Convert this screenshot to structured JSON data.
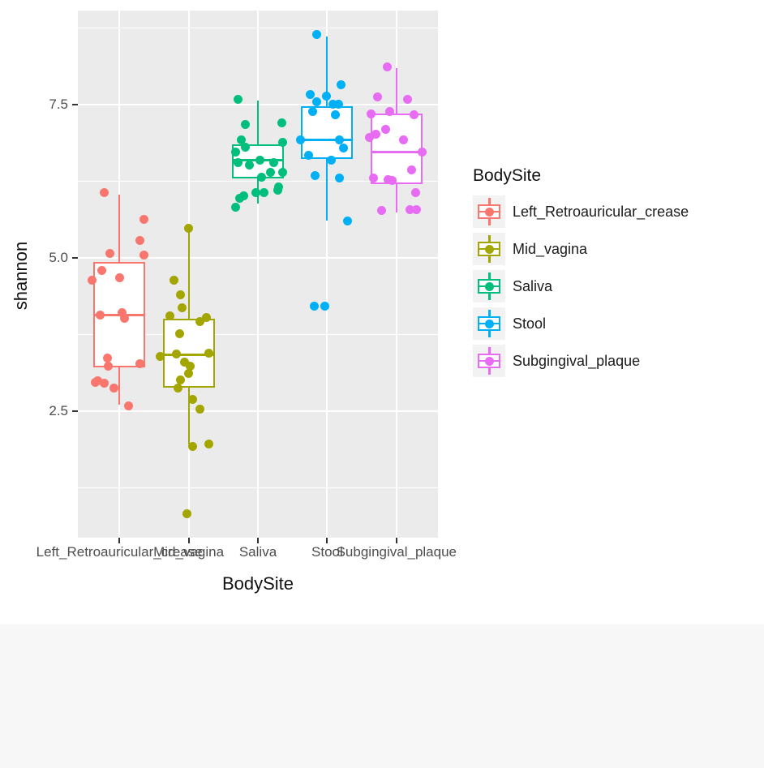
{
  "figure": {
    "y_axis": {
      "title": "shannon",
      "tick_values": [
        2.5,
        5.0,
        7.5
      ],
      "tick_labels": [
        "2.5",
        "5.0",
        "7.5"
      ]
    },
    "x_axis": {
      "title": "BodySite",
      "labels": [
        "Left_Retroauricular_crease",
        "Mid_vagina",
        "Saliva",
        "Stool",
        "Subgingival_plaque"
      ]
    },
    "legend": {
      "title": "BodySite",
      "position": "right",
      "items": [
        {
          "label": "Left_Retroauricular_crease",
          "color": "#F8766D"
        },
        {
          "label": "Mid_vagina",
          "color": "#A3A500"
        },
        {
          "label": "Saliva",
          "color": "#00BF7D"
        },
        {
          "label": "Stool",
          "color": "#00B0F6"
        },
        {
          "label": "Subgingival_plaque",
          "color": "#E76BF3"
        }
      ]
    },
    "colors": {
      "panel_background": "#EBEBEB",
      "gridline": "#FFFFFF",
      "axis_text": "#4D4D4D",
      "axis_title": "#111111",
      "legend_key_background": "#F2F2F2",
      "tick_mark": "#333333",
      "bottom_band": "#F7F7F7"
    }
  },
  "chart_data": {
    "type": "boxplot_jitter",
    "title": "",
    "xlabel": "BodySite",
    "ylabel": "shannon",
    "ylim": [
      0.4,
      9.0
    ],
    "grid": "on",
    "legend_position": "right",
    "y_major_gridlines": [
      2.5,
      5.0,
      7.5
    ],
    "y_minor_gridlines": [
      1.25,
      3.75,
      6.25,
      8.75
    ],
    "categories": [
      "Left_Retroauricular_crease",
      "Mid_vagina",
      "Saliva",
      "Stool",
      "Subgingival_plaque"
    ],
    "series": [
      {
        "name": "Left_Retroauricular_crease",
        "color": "#F8766D",
        "box": {
          "whisker_low": 2.6,
          "q1": 3.21,
          "median": 4.07,
          "q3": 4.93,
          "whisker_high": 6.03
        },
        "points": [
          [
            6.06,
            -19
          ],
          [
            5.63,
            30
          ],
          [
            5.28,
            25
          ],
          [
            5.07,
            -12
          ],
          [
            5.04,
            30
          ],
          [
            4.8,
            -22
          ],
          [
            4.67,
            0
          ],
          [
            4.64,
            -34
          ],
          [
            4.11,
            3
          ],
          [
            4.07,
            -24
          ],
          [
            4.02,
            6
          ],
          [
            3.36,
            -15
          ],
          [
            3.28,
            25
          ],
          [
            3.23,
            -14
          ],
          [
            2.99,
            -27
          ],
          [
            2.97,
            -30
          ],
          [
            2.95,
            -19
          ],
          [
            2.88,
            -7
          ],
          [
            2.59,
            11
          ]
        ]
      },
      {
        "name": "Mid_vagina",
        "color": "#A3A500",
        "box": {
          "whisker_low": 1.96,
          "q1": 2.88,
          "median": 3.42,
          "q3": 4.01,
          "whisker_high": 5.48
        },
        "points": [
          [
            5.48,
            0
          ],
          [
            4.64,
            -18
          ],
          [
            4.4,
            -10
          ],
          [
            4.18,
            -8
          ],
          [
            4.05,
            -23
          ],
          [
            4.03,
            22
          ],
          [
            3.96,
            14
          ],
          [
            3.76,
            -11
          ],
          [
            3.45,
            25
          ],
          [
            3.43,
            -15
          ],
          [
            3.39,
            -35
          ],
          [
            3.3,
            -5
          ],
          [
            3.23,
            2
          ],
          [
            3.12,
            0
          ],
          [
            3.01,
            -10
          ],
          [
            2.88,
            -13
          ],
          [
            2.69,
            5
          ],
          [
            2.53,
            14
          ],
          [
            1.96,
            25
          ],
          [
            1.93,
            5
          ],
          [
            0.83,
            -2
          ]
        ]
      },
      {
        "name": "Saliva",
        "color": "#00BF7D",
        "box": {
          "whisker_low": 5.89,
          "q1": 6.3,
          "median": 6.59,
          "q3": 6.85,
          "whisker_high": 7.57
        },
        "points": [
          [
            7.59,
            -25
          ],
          [
            7.2,
            29
          ],
          [
            7.18,
            -16
          ],
          [
            6.92,
            -21
          ],
          [
            6.89,
            30
          ],
          [
            6.8,
            -16
          ],
          [
            6.73,
            -28
          ],
          [
            6.6,
            2
          ],
          [
            6.56,
            -25
          ],
          [
            6.56,
            19
          ],
          [
            6.52,
            -11
          ],
          [
            6.39,
            15
          ],
          [
            6.39,
            30
          ],
          [
            6.32,
            4
          ],
          [
            6.16,
            25
          ],
          [
            6.1,
            24
          ],
          [
            6.07,
            7
          ],
          [
            6.06,
            -3
          ],
          [
            6.01,
            -18
          ],
          [
            5.97,
            -23
          ],
          [
            5.83,
            -28
          ]
        ]
      },
      {
        "name": "Stool",
        "color": "#00B0F6",
        "box": {
          "whisker_low": 5.61,
          "q1": 6.61,
          "median": 6.93,
          "q3": 7.47,
          "whisker_high": 8.61
        },
        "points": [
          [
            8.64,
            -13
          ],
          [
            7.82,
            17
          ],
          [
            7.66,
            -21
          ],
          [
            7.64,
            -1
          ],
          [
            7.55,
            -13
          ],
          [
            7.51,
            7
          ],
          [
            7.51,
            14
          ],
          [
            7.39,
            -18
          ],
          [
            7.33,
            10
          ],
          [
            6.93,
            -33
          ],
          [
            6.92,
            15
          ],
          [
            6.79,
            20
          ],
          [
            6.67,
            -23
          ],
          [
            6.6,
            5
          ],
          [
            6.34,
            -15
          ],
          [
            6.3,
            15
          ],
          [
            5.6,
            25
          ],
          [
            4.21,
            -16
          ],
          [
            4.21,
            -3
          ]
        ]
      },
      {
        "name": "Subgingival_plaque",
        "color": "#E76BF3",
        "box": {
          "whisker_low": 5.74,
          "q1": 6.2,
          "median": 6.73,
          "q3": 7.35,
          "whisker_high": 8.1
        },
        "points": [
          [
            8.12,
            -11
          ],
          [
            7.62,
            -23
          ],
          [
            7.59,
            14
          ],
          [
            7.39,
            -8
          ],
          [
            7.35,
            -31
          ],
          [
            7.33,
            22
          ],
          [
            7.09,
            -13
          ],
          [
            7.02,
            -25
          ],
          [
            6.96,
            -33
          ],
          [
            6.92,
            9
          ],
          [
            6.72,
            32
          ],
          [
            6.43,
            19
          ],
          [
            6.3,
            -28
          ],
          [
            6.27,
            -10
          ],
          [
            6.26,
            -5
          ],
          [
            6.07,
            24
          ],
          [
            5.79,
            17
          ],
          [
            5.79,
            25
          ],
          [
            5.77,
            -18
          ]
        ]
      }
    ]
  }
}
